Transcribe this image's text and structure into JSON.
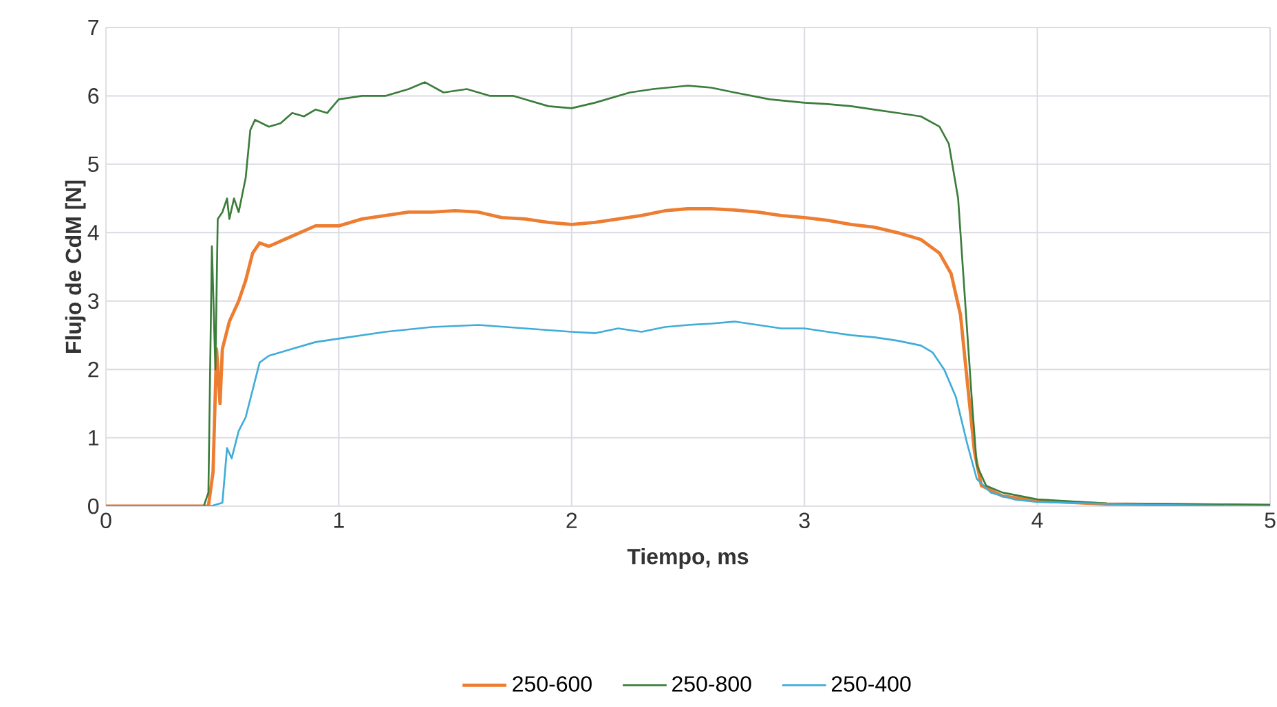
{
  "chart_data": {
    "type": "line",
    "xlabel": "Tiempo, ms",
    "ylabel": "Flujo de CdM [N]",
    "xlim": [
      0,
      5
    ],
    "ylim": [
      0,
      7
    ],
    "xticks": [
      0,
      1,
      2,
      3,
      4,
      5
    ],
    "yticks": [
      0,
      1,
      2,
      3,
      4,
      5,
      6,
      7
    ],
    "grid": true,
    "legend": "bottom",
    "series": [
      {
        "name": "250-600",
        "color": "#ed7d31",
        "x": [
          0,
          0.44,
          0.46,
          0.475,
          0.49,
          0.5,
          0.53,
          0.57,
          0.6,
          0.63,
          0.66,
          0.7,
          0.8,
          0.9,
          1.0,
          1.1,
          1.2,
          1.3,
          1.4,
          1.5,
          1.6,
          1.7,
          1.8,
          1.9,
          2.0,
          2.1,
          2.2,
          2.3,
          2.4,
          2.5,
          2.6,
          2.7,
          2.8,
          2.9,
          3.0,
          3.1,
          3.2,
          3.3,
          3.4,
          3.5,
          3.58,
          3.63,
          3.67,
          3.7,
          3.73,
          3.76,
          3.85,
          4.0,
          4.3,
          5
        ],
        "values": [
          0,
          0,
          0.5,
          2.3,
          1.5,
          2.3,
          2.7,
          3.0,
          3.3,
          3.7,
          3.85,
          3.8,
          3.95,
          4.1,
          4.1,
          4.2,
          4.25,
          4.3,
          4.3,
          4.32,
          4.3,
          4.22,
          4.2,
          4.15,
          4.12,
          4.15,
          4.2,
          4.25,
          4.32,
          4.35,
          4.35,
          4.33,
          4.3,
          4.25,
          4.22,
          4.18,
          4.12,
          4.08,
          4.0,
          3.9,
          3.7,
          3.4,
          2.8,
          1.8,
          0.8,
          0.3,
          0.15,
          0.08,
          0.03,
          0.01
        ]
      },
      {
        "name": "250-800",
        "color": "#3b7d3b",
        "x": [
          0,
          0.42,
          0.44,
          0.455,
          0.47,
          0.48,
          0.5,
          0.52,
          0.53,
          0.55,
          0.57,
          0.6,
          0.62,
          0.64,
          0.7,
          0.75,
          0.8,
          0.85,
          0.9,
          0.95,
          1.0,
          1.1,
          1.2,
          1.3,
          1.37,
          1.45,
          1.55,
          1.65,
          1.75,
          1.9,
          2.0,
          2.1,
          2.25,
          2.35,
          2.5,
          2.6,
          2.7,
          2.85,
          3.0,
          3.1,
          3.2,
          3.3,
          3.4,
          3.5,
          3.58,
          3.62,
          3.66,
          3.69,
          3.72,
          3.74,
          3.78,
          3.85,
          4.0,
          4.3,
          5
        ],
        "values": [
          0,
          0,
          0.2,
          3.8,
          2.0,
          4.2,
          4.3,
          4.5,
          4.2,
          4.5,
          4.3,
          4.8,
          5.5,
          5.65,
          5.55,
          5.6,
          5.75,
          5.7,
          5.8,
          5.75,
          5.95,
          6.0,
          6.0,
          6.1,
          6.2,
          6.05,
          6.1,
          6.0,
          6.0,
          5.85,
          5.82,
          5.9,
          6.05,
          6.1,
          6.15,
          6.12,
          6.05,
          5.95,
          5.9,
          5.88,
          5.85,
          5.8,
          5.75,
          5.7,
          5.55,
          5.3,
          4.5,
          3.0,
          1.5,
          0.6,
          0.3,
          0.2,
          0.1,
          0.04,
          0.02
        ]
      },
      {
        "name": "250-400",
        "color": "#3fadd8",
        "x": [
          0,
          0.45,
          0.5,
          0.52,
          0.54,
          0.57,
          0.6,
          0.63,
          0.66,
          0.7,
          0.8,
          0.9,
          1.0,
          1.2,
          1.4,
          1.6,
          1.8,
          2.0,
          2.1,
          2.2,
          2.3,
          2.4,
          2.5,
          2.6,
          2.7,
          2.8,
          2.9,
          3.0,
          3.1,
          3.2,
          3.3,
          3.4,
          3.5,
          3.55,
          3.6,
          3.65,
          3.7,
          3.74,
          3.8,
          3.9,
          4.0,
          4.5,
          5
        ],
        "values": [
          0,
          0,
          0.05,
          0.85,
          0.7,
          1.1,
          1.3,
          1.7,
          2.1,
          2.2,
          2.3,
          2.4,
          2.45,
          2.55,
          2.62,
          2.65,
          2.6,
          2.55,
          2.53,
          2.6,
          2.55,
          2.62,
          2.65,
          2.67,
          2.7,
          2.65,
          2.6,
          2.6,
          2.55,
          2.5,
          2.47,
          2.42,
          2.35,
          2.25,
          2.0,
          1.6,
          0.9,
          0.4,
          0.2,
          0.1,
          0.06,
          0.02,
          0
        ]
      }
    ]
  }
}
